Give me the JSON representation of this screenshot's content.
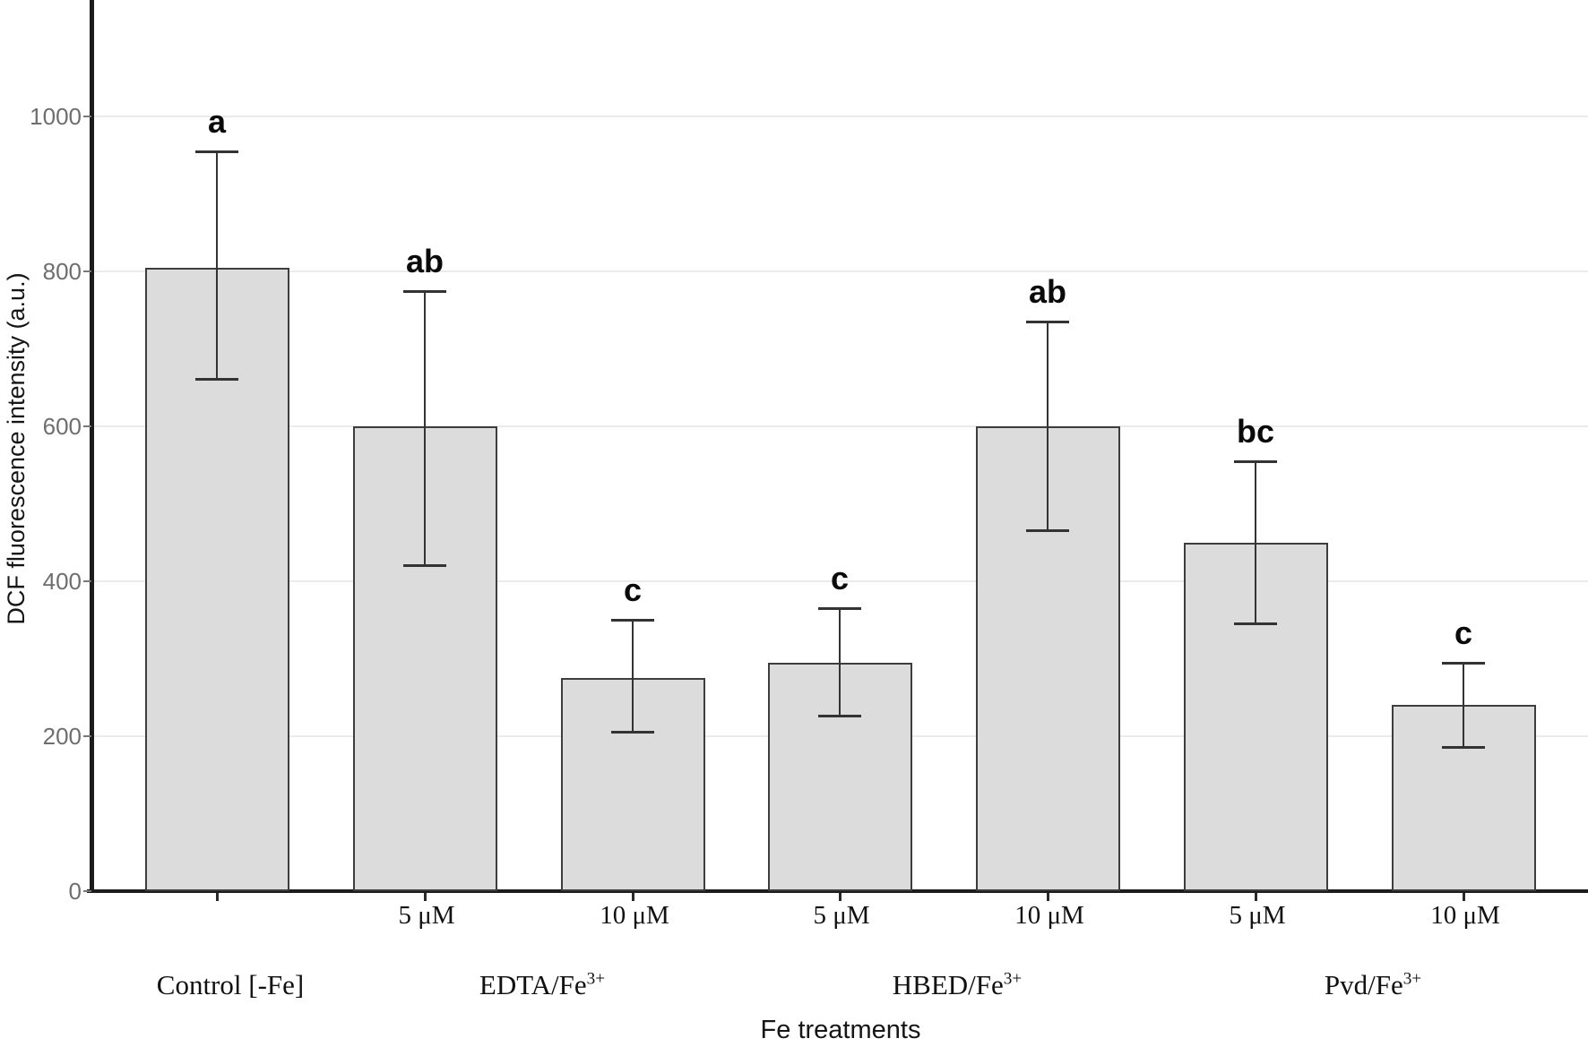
{
  "figure": {
    "background": "#ffffff",
    "bar_fill": "#dcdcdc",
    "bar_border": "#3d3d3d",
    "error_bar_color": "#333333",
    "gridline_color": "#ebebeb",
    "axis_line_color": "#1c1c1c",
    "y_tick_label_color": "#6e6e6e",
    "label_text_color": "#111111"
  },
  "chart_data": {
    "type": "bar",
    "title": "",
    "xlabel": "Fe treatments",
    "ylabel": "DCF fluorescence intensity (a.u.)",
    "ylim": [
      0,
      1150
    ],
    "yticks": [
      0,
      200,
      400,
      600,
      800,
      1000
    ],
    "grid": "horizontal-light",
    "legend": "none",
    "error_bars": true,
    "groups": [
      {
        "label": "Control [-Fe]",
        "label_sup": "",
        "bars": [
          {
            "x_tick_label": "",
            "value": 805,
            "err_low": 660,
            "err_high": 955,
            "sig_letter": "a"
          }
        ]
      },
      {
        "label": "EDTA/Fe",
        "label_sup": "3+",
        "bars": [
          {
            "x_tick_label": "5 μM",
            "value": 600,
            "err_low": 420,
            "err_high": 775,
            "sig_letter": "ab"
          },
          {
            "x_tick_label": "10 μM",
            "value": 275,
            "err_low": 205,
            "err_high": 350,
            "sig_letter": "c"
          }
        ]
      },
      {
        "label": "HBED/Fe",
        "label_sup": "3+",
        "bars": [
          {
            "x_tick_label": "5 μM",
            "value": 295,
            "err_low": 225,
            "err_high": 365,
            "sig_letter": "c"
          },
          {
            "x_tick_label": "10 μM",
            "value": 600,
            "err_low": 465,
            "err_high": 735,
            "sig_letter": "ab"
          }
        ]
      },
      {
        "label": "Pvd/Fe",
        "label_sup": "3+",
        "bars": [
          {
            "x_tick_label": "5 μM",
            "value": 450,
            "err_low": 345,
            "err_high": 555,
            "sig_letter": "bc"
          },
          {
            "x_tick_label": "10 μM",
            "value": 240,
            "err_low": 185,
            "err_high": 295,
            "sig_letter": "c"
          }
        ]
      }
    ]
  }
}
